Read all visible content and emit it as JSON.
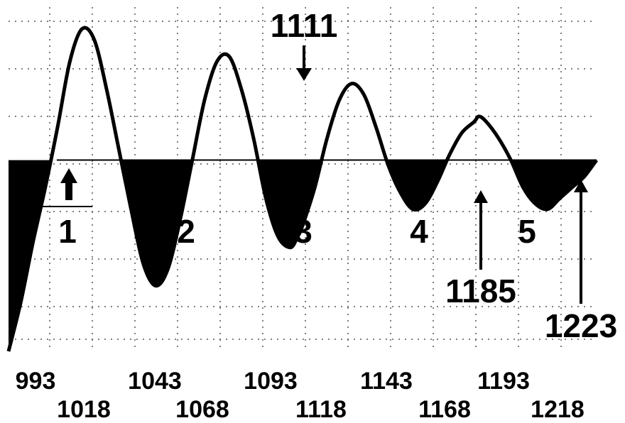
{
  "chart_data": {
    "type": "line",
    "title": "",
    "xlabel": "",
    "ylabel": "",
    "grid": true,
    "x": [
      993,
      998,
      1003,
      1008,
      1013,
      1018,
      1023,
      1028,
      1033,
      1038,
      1043,
      1048,
      1053,
      1058,
      1063,
      1068,
      1073,
      1078,
      1083,
      1088,
      1093,
      1098,
      1103,
      1108,
      1111,
      1113,
      1118,
      1123,
      1128,
      1133,
      1138,
      1143,
      1148,
      1153,
      1158,
      1163,
      1168,
      1173,
      1178,
      1183,
      1185,
      1188,
      1193,
      1198,
      1203,
      1208,
      1213,
      1218,
      1223,
      1228,
      1233
    ],
    "y": [
      -3.5,
      -2.6,
      -1.5,
      -0.5,
      0.6,
      1.8,
      2.4,
      2.2,
      1.3,
      0.2,
      -0.9,
      -1.9,
      -2.3,
      -2.0,
      -1.1,
      0.0,
      1.1,
      1.8,
      1.9,
      1.3,
      0.4,
      -0.7,
      -1.4,
      -1.6,
      -1.4,
      -1.2,
      -0.5,
      0.4,
      1.1,
      1.4,
      1.2,
      0.6,
      -0.1,
      -0.6,
      -0.9,
      -0.8,
      -0.4,
      0.1,
      0.5,
      0.7,
      0.8,
      0.7,
      0.4,
      0.0,
      -0.5,
      -0.8,
      -0.9,
      -0.7,
      -0.5,
      -0.3,
      0.0
    ],
    "xlim": [
      993,
      1233
    ],
    "ylim": [
      -3.5,
      2.8
    ],
    "x_tick_labels_row1": [
      "993",
      "1043",
      "1093",
      "1143",
      "1193"
    ],
    "x_tick_labels_row2": [
      "1018",
      "1068",
      "1118",
      "1168",
      "1218"
    ],
    "zone_labels": [
      "1",
      "2",
      "3",
      "4",
      "5"
    ],
    "annotations": [
      {
        "label": "1111",
        "x": 1111
      },
      {
        "label": "1185",
        "x": 1185
      },
      {
        "label": "1223",
        "x": 1223
      }
    ],
    "colors": {
      "line": "#000000",
      "fill_below": "#000000",
      "grid": "#555555"
    }
  }
}
